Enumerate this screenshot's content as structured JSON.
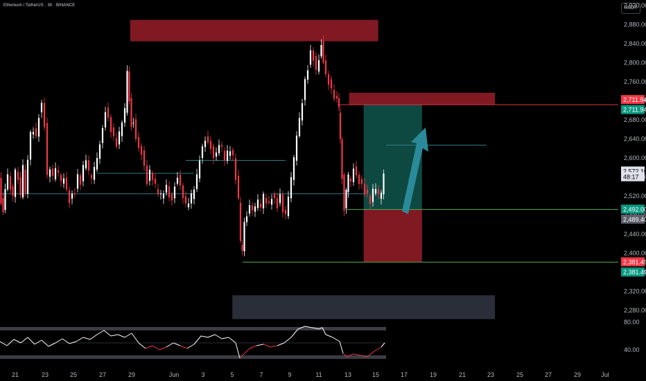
{
  "header": {
    "symbol": "Ethereum / TetherUS · 3h · BINANCE",
    "currency": "USDT"
  },
  "colors": {
    "up": "#ffffff",
    "down": "#f23645",
    "zone_red": "#801922",
    "zone_green": "#0f5148",
    "grey_zone": "#2a2e39",
    "arrow": "#2a8a99",
    "line_red": "#e03440",
    "line_green": "#4caf50",
    "teal_line": "#2d7b86",
    "rsi_line": "#ffffff",
    "rsi_line_low": "#f23645"
  },
  "chart_data": {
    "type": "candlestick",
    "price_axis": {
      "min": 2260,
      "max": 2920,
      "ticks": [
        2280,
        2320,
        2360,
        2400,
        2440,
        2480,
        2520,
        2560,
        2600,
        2640,
        2680,
        2720,
        2760,
        2800,
        2840,
        2880,
        2920
      ],
      "tick_labels": [
        "2,280.00",
        "2,320.00",
        "2,360.00",
        "2,400.00",
        "2,440.00",
        "2,480.00",
        "2,520.00",
        "2,560.00",
        "2,600.00",
        "2,640.00",
        "2,680.00",
        "2,720.00",
        "2,760.00",
        "2,800.00",
        "2,840.00",
        "2,880.00",
        "2,920.00"
      ]
    },
    "time_axis": {
      "labels": [
        "21",
        "23",
        "25",
        "27",
        "29",
        "Jun",
        "3",
        "5",
        "7",
        "9",
        "11",
        "13",
        "15",
        "17",
        "19",
        "21",
        "23",
        "25",
        "27",
        "29",
        "Jul"
      ]
    },
    "close_path": [
      [
        0,
        2555
      ],
      [
        3,
        2510
      ],
      [
        6,
        2490
      ],
      [
        9,
        2535
      ],
      [
        13,
        2560
      ],
      [
        17,
        2540
      ],
      [
        20,
        2520
      ],
      [
        24,
        2570
      ],
      [
        28,
        2560
      ],
      [
        31,
        2520
      ],
      [
        35,
        2580
      ],
      [
        38,
        2530
      ],
      [
        42,
        2600
      ],
      [
        46,
        2650
      ],
      [
        50,
        2660
      ],
      [
        54,
        2640
      ],
      [
        58,
        2690
      ],
      [
        62,
        2710
      ],
      [
        66,
        2670
      ],
      [
        70,
        2560
      ],
      [
        74,
        2580
      ],
      [
        78,
        2560
      ],
      [
        82,
        2580
      ],
      [
        86,
        2570
      ],
      [
        90,
        2550
      ],
      [
        94,
        2560
      ],
      [
        98,
        2530
      ],
      [
        102,
        2510
      ],
      [
        106,
        2520
      ],
      [
        110,
        2530
      ],
      [
        114,
        2560
      ],
      [
        118,
        2550
      ],
      [
        122,
        2580
      ],
      [
        126,
        2600
      ],
      [
        130,
        2570
      ],
      [
        134,
        2560
      ],
      [
        138,
        2580
      ],
      [
        142,
        2600
      ],
      [
        146,
        2630
      ],
      [
        150,
        2660
      ],
      [
        154,
        2700
      ],
      [
        158,
        2680
      ],
      [
        162,
        2660
      ],
      [
        166,
        2640
      ],
      [
        170,
        2630
      ],
      [
        174,
        2650
      ],
      [
        178,
        2680
      ],
      [
        182,
        2700
      ],
      [
        185,
        2780
      ],
      [
        188,
        2720
      ],
      [
        191,
        2670
      ],
      [
        194,
        2680
      ],
      [
        198,
        2640
      ],
      [
        202,
        2620
      ],
      [
        206,
        2610
      ],
      [
        210,
        2580
      ],
      [
        214,
        2550
      ],
      [
        218,
        2570
      ],
      [
        222,
        2560
      ],
      [
        226,
        2540
      ],
      [
        230,
        2530
      ],
      [
        234,
        2520
      ],
      [
        238,
        2530
      ],
      [
        242,
        2540
      ],
      [
        246,
        2520
      ],
      [
        250,
        2510
      ],
      [
        254,
        2540
      ],
      [
        258,
        2560
      ],
      [
        262,
        2540
      ],
      [
        266,
        2520
      ],
      [
        270,
        2500
      ],
      [
        274,
        2510
      ],
      [
        278,
        2520
      ],
      [
        282,
        2540
      ],
      [
        286,
        2560
      ],
      [
        290,
        2600
      ],
      [
        294,
        2620
      ],
      [
        298,
        2640
      ],
      [
        302,
        2630
      ],
      [
        306,
        2620
      ],
      [
        310,
        2600
      ],
      [
        314,
        2610
      ],
      [
        318,
        2630
      ],
      [
        322,
        2620
      ],
      [
        326,
        2600
      ],
      [
        330,
        2610
      ],
      [
        334,
        2620
      ],
      [
        338,
        2600
      ],
      [
        342,
        2560
      ],
      [
        346,
        2510
      ],
      [
        348,
        2420
      ],
      [
        351,
        2400
      ],
      [
        354,
        2460
      ],
      [
        358,
        2480
      ],
      [
        362,
        2500
      ],
      [
        366,
        2490
      ],
      [
        370,
        2500
      ],
      [
        374,
        2510
      ],
      [
        378,
        2500
      ],
      [
        382,
        2520
      ],
      [
        386,
        2510
      ],
      [
        390,
        2500
      ],
      [
        394,
        2520
      ],
      [
        398,
        2510
      ],
      [
        402,
        2500
      ],
      [
        406,
        2520
      ],
      [
        410,
        2490
      ],
      [
        414,
        2480
      ],
      [
        418,
        2520
      ],
      [
        422,
        2560
      ],
      [
        426,
        2600
      ],
      [
        430,
        2650
      ],
      [
        434,
        2680
      ],
      [
        438,
        2720
      ],
      [
        442,
        2760
      ],
      [
        446,
        2790
      ],
      [
        450,
        2820
      ],
      [
        454,
        2810
      ],
      [
        458,
        2780
      ],
      [
        462,
        2810
      ],
      [
        465,
        2840
      ],
      [
        468,
        2800
      ],
      [
        472,
        2770
      ],
      [
        476,
        2760
      ],
      [
        480,
        2740
      ],
      [
        484,
        2730
      ],
      [
        488,
        2720
      ],
      [
        490,
        2700
      ],
      [
        492,
        2640
      ],
      [
        495,
        2560
      ],
      [
        498,
        2490
      ],
      [
        501,
        2530
      ],
      [
        504,
        2560
      ],
      [
        508,
        2550
      ],
      [
        512,
        2580
      ],
      [
        516,
        2560
      ],
      [
        520,
        2550
      ],
      [
        524,
        2540
      ],
      [
        528,
        2530
      ],
      [
        532,
        2520
      ],
      [
        536,
        2510
      ],
      [
        540,
        2530
      ],
      [
        544,
        2540
      ],
      [
        548,
        2520
      ],
      [
        552,
        2530
      ],
      [
        555,
        2572
      ]
    ],
    "rsi": {
      "range": [
        20,
        80
      ],
      "tick_labels": [
        "80.00",
        "40.00"
      ],
      "upper_band": 70,
      "lower_band": 30,
      "series": [
        [
          0,
          52
        ],
        [
          10,
          46
        ],
        [
          20,
          55
        ],
        [
          30,
          50
        ],
        [
          40,
          58
        ],
        [
          50,
          48
        ],
        [
          60,
          54
        ],
        [
          70,
          45
        ],
        [
          80,
          50
        ],
        [
          90,
          56
        ],
        [
          100,
          49
        ],
        [
          110,
          52
        ],
        [
          120,
          58
        ],
        [
          130,
          55
        ],
        [
          140,
          62
        ],
        [
          150,
          68
        ],
        [
          160,
          60
        ],
        [
          170,
          62
        ],
        [
          180,
          58
        ],
        [
          190,
          64
        ],
        [
          200,
          50
        ],
        [
          210,
          42
        ],
        [
          220,
          46
        ],
        [
          230,
          40
        ],
        [
          240,
          44
        ],
        [
          250,
          50
        ],
        [
          260,
          46
        ],
        [
          270,
          42
        ],
        [
          280,
          48
        ],
        [
          290,
          60
        ],
        [
          300,
          58
        ],
        [
          310,
          62
        ],
        [
          320,
          56
        ],
        [
          330,
          58
        ],
        [
          340,
          50
        ],
        [
          346,
          28
        ],
        [
          350,
          32
        ],
        [
          360,
          42
        ],
        [
          370,
          46
        ],
        [
          380,
          48
        ],
        [
          390,
          44
        ],
        [
          400,
          46
        ],
        [
          410,
          50
        ],
        [
          420,
          58
        ],
        [
          430,
          70
        ],
        [
          440,
          74
        ],
        [
          450,
          72
        ],
        [
          460,
          70
        ],
        [
          465,
          72
        ],
        [
          470,
          62
        ],
        [
          480,
          58
        ],
        [
          490,
          52
        ],
        [
          495,
          35
        ],
        [
          500,
          30
        ],
        [
          510,
          34
        ],
        [
          520,
          32
        ],
        [
          530,
          30
        ],
        [
          540,
          38
        ],
        [
          550,
          44
        ],
        [
          555,
          50
        ]
      ]
    },
    "zones": [
      {
        "kind": "red",
        "x1": "May 29",
        "x2": "Jun 15",
        "y1": 2890,
        "y2": 2845
      },
      {
        "kind": "red",
        "x1": "Jun 13",
        "x2": "Jun 23",
        "y1": 2737,
        "y2": 2712
      },
      {
        "kind": "green",
        "x1": "Jun 14",
        "x2": "Jun 18",
        "y1": 2712,
        "y2": 2492
      },
      {
        "kind": "red",
        "x1": "Jun 14",
        "x2": "Jun 18",
        "y1": 2492,
        "y2": 2381.49
      },
      {
        "kind": "grey",
        "x1": "Jun 5",
        "x2": "Jun 23",
        "y1": 2312,
        "y2": 2262
      }
    ],
    "levels": [
      {
        "price": 2711.94,
        "color": "red"
      },
      {
        "price": 2492.0,
        "color": "green"
      },
      {
        "price": 2381.49,
        "color": "green"
      }
    ],
    "price_labels": [
      {
        "text": "2,711.94",
        "price": 2722,
        "bg": "#f23645"
      },
      {
        "text": "2,711.94",
        "price": 2701,
        "bg": "#089981"
      },
      {
        "text": "2,572.10",
        "price": 2572,
        "bg": "#e0e3eb",
        "fg": "#000000"
      },
      {
        "text": "48:17",
        "price": 2560,
        "bg": "#e0e3eb",
        "fg": "#000000"
      },
      {
        "text": "2,492.00",
        "price": 2492,
        "bg": "#089981"
      },
      {
        "text": "2,489.40",
        "price": 2471,
        "bg": "#5d606b"
      },
      {
        "text": "2,381.49",
        "price": 2381.49,
        "bg": "#f23645"
      },
      {
        "text": "2,381.49",
        "price": 2360,
        "bg": "#089981"
      }
    ]
  }
}
